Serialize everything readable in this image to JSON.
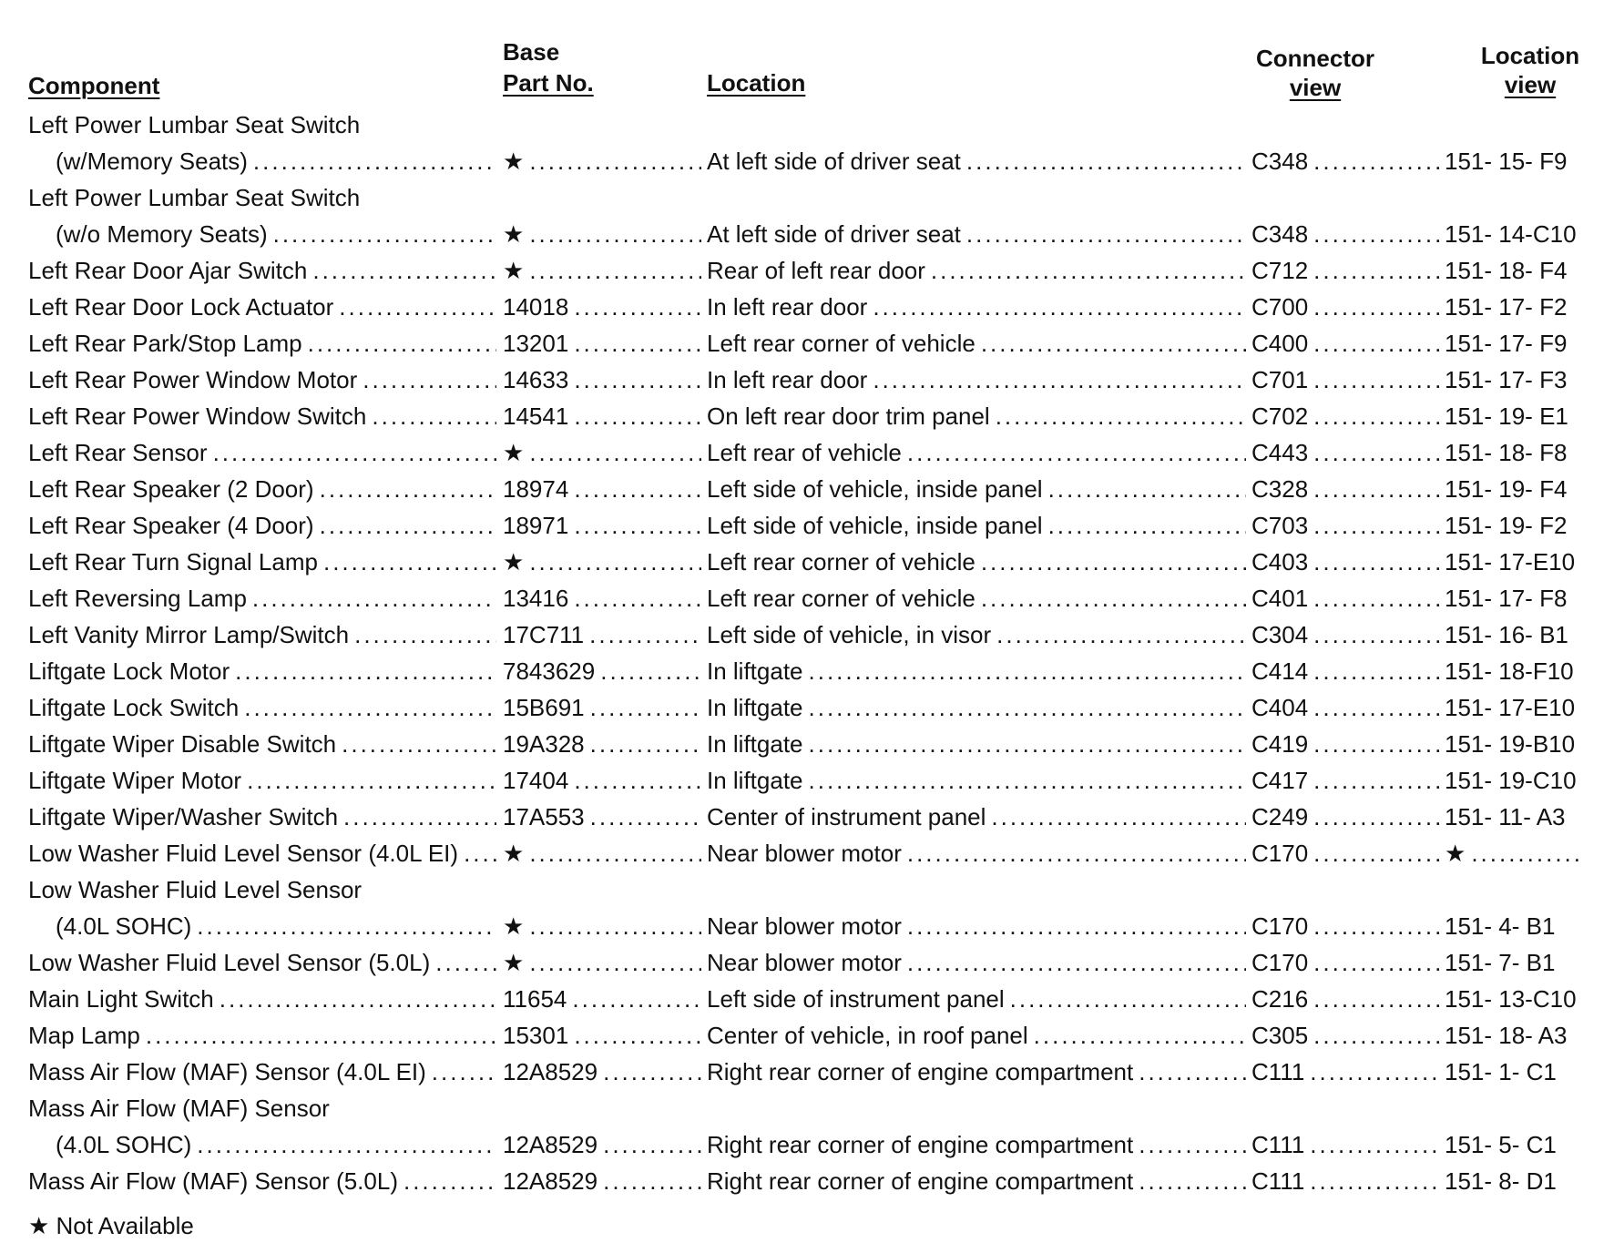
{
  "headers": {
    "component": "Component",
    "part_line1": "Base",
    "part_line2": "Part No.",
    "location": "Location",
    "connector_line1": "Connector",
    "connector_line2": "view",
    "location_view_line1": "Location",
    "location_view_line2": "view"
  },
  "rows": [
    {
      "component": [
        "Left Power Lumbar Seat Switch",
        "(w/Memory Seats)"
      ],
      "part": "★",
      "location": "At left side of driver seat",
      "connector": "C348",
      "view": "151- 15- F9"
    },
    {
      "component": [
        "Left Power Lumbar Seat Switch",
        "(w/o Memory Seats)"
      ],
      "part": "★",
      "location": "At left side of driver seat",
      "connector": "C348",
      "view": "151- 14-C10"
    },
    {
      "component": [
        "Left Rear Door Ajar Switch"
      ],
      "part": "★",
      "location": "Rear of left rear door",
      "connector": "C712",
      "view": "151- 18- F4"
    },
    {
      "component": [
        "Left Rear Door Lock Actuator"
      ],
      "part": "14018",
      "location": "In left rear door",
      "connector": "C700",
      "view": "151- 17- F2"
    },
    {
      "component": [
        "Left Rear Park/Stop Lamp"
      ],
      "part": "13201",
      "location": "Left rear corner of vehicle",
      "connector": "C400",
      "view": "151- 17- F9"
    },
    {
      "component": [
        "Left Rear Power Window Motor"
      ],
      "part": "14633",
      "location": "In left rear door",
      "connector": "C701",
      "view": "151- 17- F3"
    },
    {
      "component": [
        "Left Rear Power Window Switch"
      ],
      "part": "14541",
      "location": "On left rear door trim panel",
      "connector": "C702",
      "view": "151- 19- E1"
    },
    {
      "component": [
        "Left Rear Sensor"
      ],
      "part": "★",
      "location": "Left rear of vehicle",
      "connector": "C443",
      "view": "151- 18- F8"
    },
    {
      "component": [
        "Left Rear Speaker (2 Door)"
      ],
      "part": "18974",
      "location": "Left side of vehicle, inside panel",
      "connector": "C328",
      "view": "151- 19- F4"
    },
    {
      "component": [
        "Left Rear Speaker (4 Door)"
      ],
      "part": "18971",
      "location": "Left side of vehicle, inside panel",
      "connector": "C703",
      "view": "151- 19- F2"
    },
    {
      "component": [
        "Left Rear Turn Signal Lamp"
      ],
      "part": "★",
      "location": "Left rear corner of vehicle",
      "connector": "C403",
      "view": "151- 17-E10"
    },
    {
      "component": [
        "Left Reversing Lamp"
      ],
      "part": "13416",
      "location": "Left rear corner of vehicle",
      "connector": "C401",
      "view": "151- 17- F8"
    },
    {
      "component": [
        "Left Vanity Mirror Lamp/Switch"
      ],
      "part": "17C711",
      "location": "Left side of vehicle, in visor",
      "connector": "C304",
      "view": "151- 16- B1"
    },
    {
      "component": [
        "Liftgate Lock Motor"
      ],
      "part": "7843629",
      "location": "In liftgate",
      "connector": "C414",
      "view": "151- 18-F10"
    },
    {
      "component": [
        "Liftgate Lock Switch"
      ],
      "part": "15B691",
      "location": "In liftgate",
      "connector": "C404",
      "view": "151- 17-E10"
    },
    {
      "component": [
        "Liftgate Wiper Disable Switch"
      ],
      "part": "19A328",
      "location": "In liftgate",
      "connector": "C419",
      "view": "151- 19-B10"
    },
    {
      "component": [
        "Liftgate Wiper Motor"
      ],
      "part": "17404",
      "location": "In liftgate",
      "connector": "C417",
      "view": "151- 19-C10"
    },
    {
      "component": [
        "Liftgate Wiper/Washer Switch"
      ],
      "part": "17A553",
      "location": "Center of instrument panel",
      "connector": "C249",
      "view": "151- 11- A3"
    },
    {
      "component": [
        "Low Washer Fluid Level Sensor (4.0L EI)"
      ],
      "part": "★",
      "location": "Near blower motor",
      "connector": "C170",
      "view": "★"
    },
    {
      "component": [
        "Low Washer Fluid Level Sensor",
        "(4.0L SOHC)"
      ],
      "part": "★",
      "location": "Near blower motor",
      "connector": "C170",
      "view": "151-  4- B1"
    },
    {
      "component": [
        "Low Washer Fluid Level Sensor (5.0L)"
      ],
      "part": "★",
      "location": "Near blower motor",
      "connector": "C170",
      "view": "151-  7- B1"
    },
    {
      "component": [
        "Main Light Switch"
      ],
      "part": "11654",
      "location": "Left side of instrument panel",
      "connector": "C216",
      "view": "151- 13-C10"
    },
    {
      "component": [
        "Map Lamp"
      ],
      "part": "15301",
      "location": "Center of vehicle, in roof panel",
      "connector": "C305",
      "view": "151- 18- A3"
    },
    {
      "component": [
        "Mass Air Flow (MAF) Sensor (4.0L EI)"
      ],
      "part": "12A8529",
      "location": "Right rear corner of engine compartment",
      "connector": "C111",
      "view": "151-  1- C1"
    },
    {
      "component": [
        "Mass Air Flow (MAF) Sensor",
        "(4.0L SOHC)"
      ],
      "part": "12A8529",
      "location": "Right rear corner of engine compartment",
      "connector": "C111",
      "view": "151-  5- C1"
    },
    {
      "component": [
        "Mass Air Flow (MAF) Sensor (5.0L)"
      ],
      "part": "12A8529",
      "location": "Right rear corner of engine compartment",
      "connector": "C111",
      "view": "151-  8- D1"
    }
  ],
  "footnote": "★ Not Available"
}
